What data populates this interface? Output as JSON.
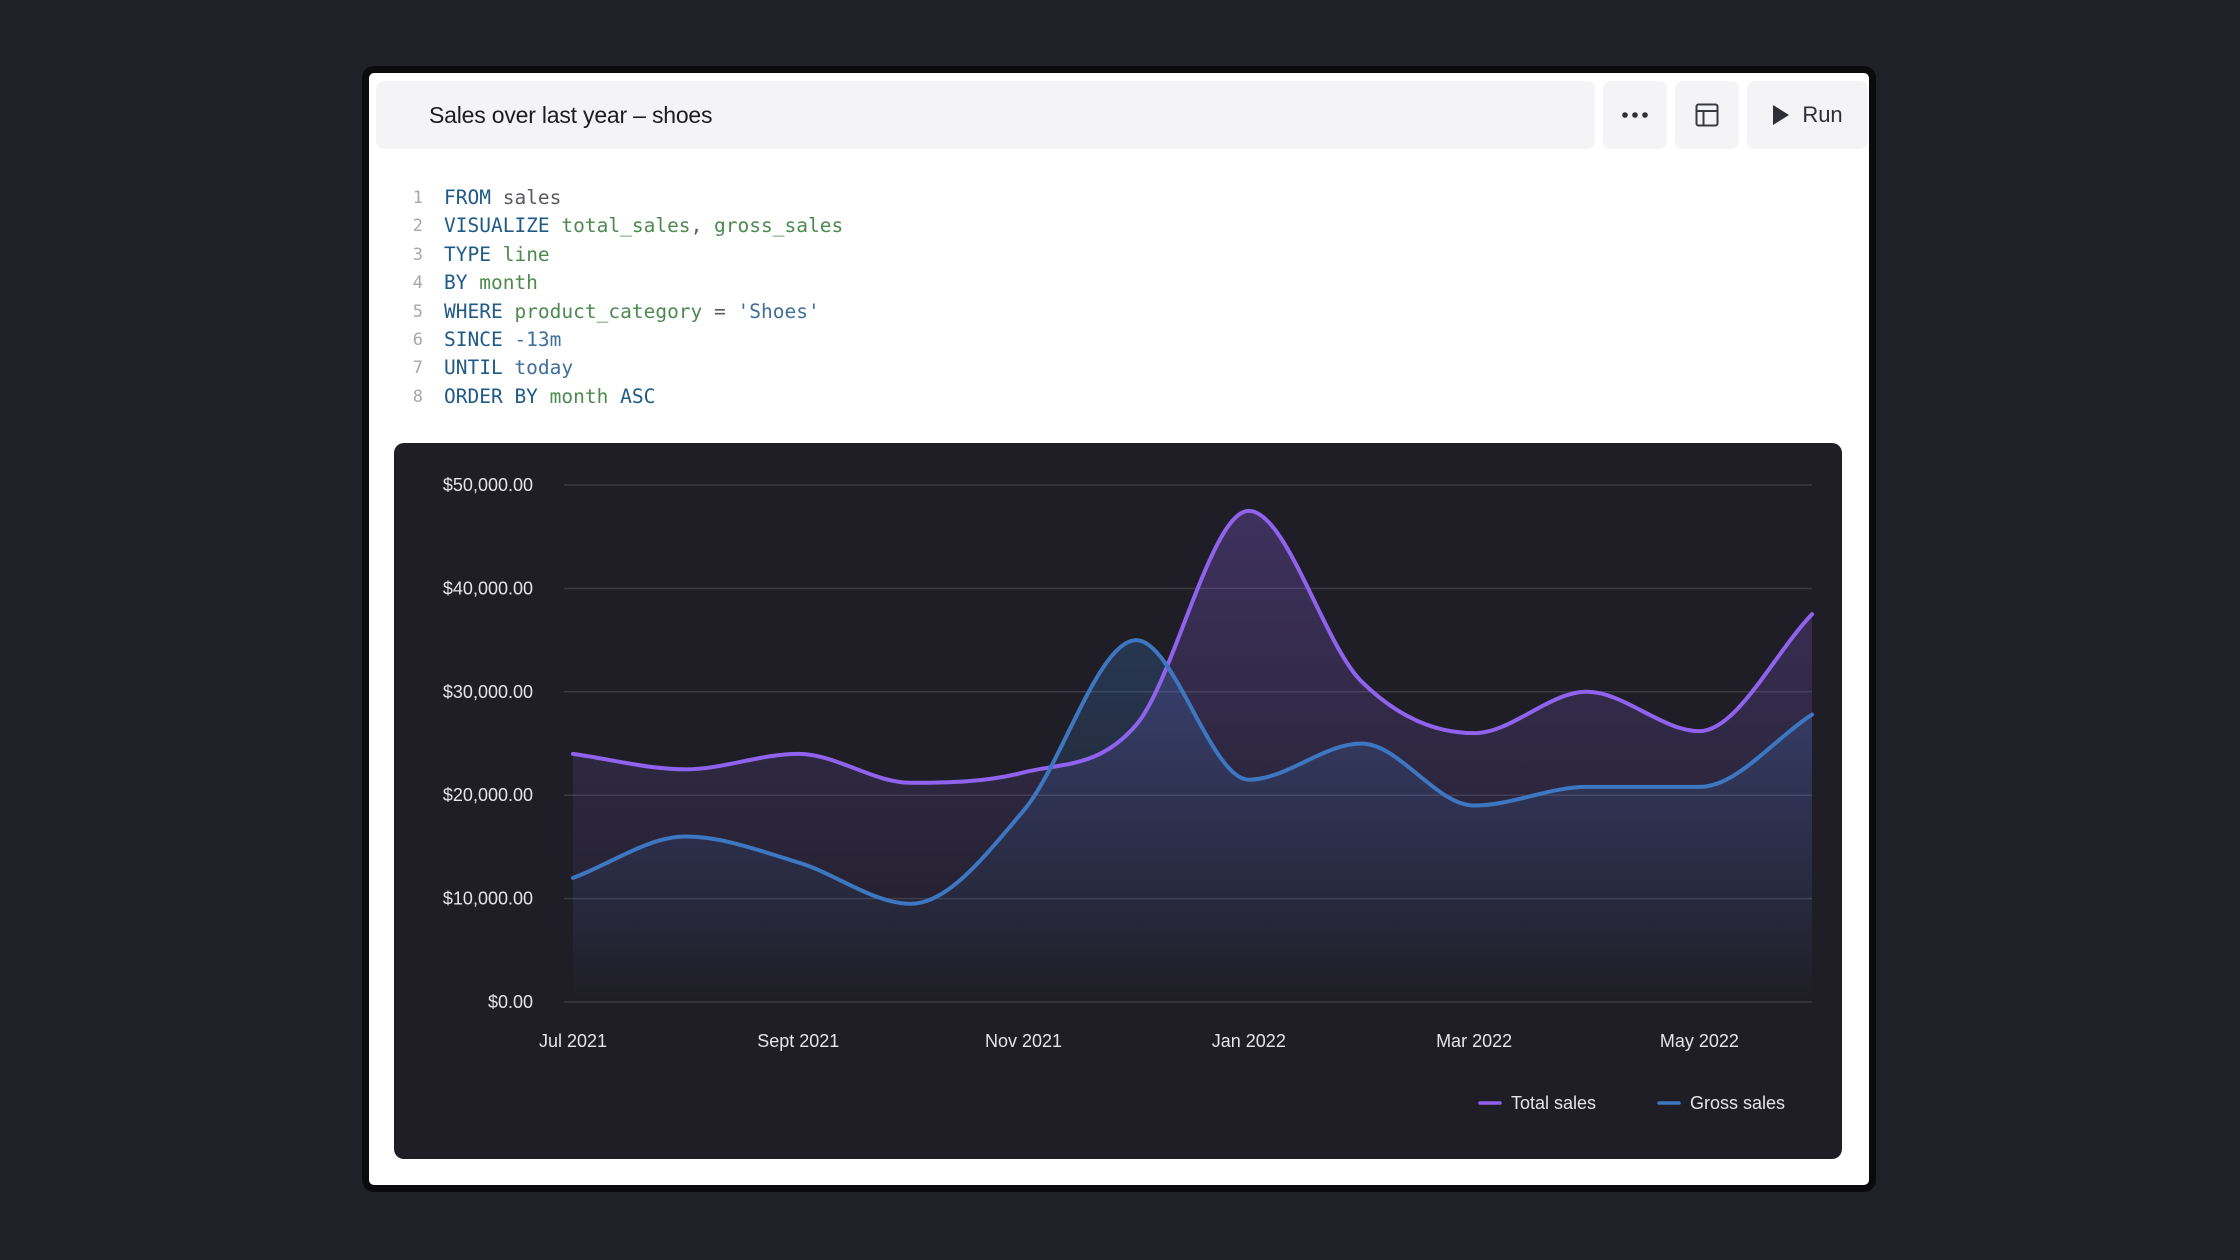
{
  "header": {
    "title": "Sales over last year – shoes",
    "more_icon": "more-horizontal-icon",
    "layout_icon": "layout-panel-icon",
    "run_icon": "play-icon",
    "run_label": "Run"
  },
  "code": {
    "lines": [
      [
        {
          "t": "FROM",
          "c": "kw"
        },
        {
          "t": " sales",
          "c": "plain"
        }
      ],
      [
        {
          "t": "VISUALIZE",
          "c": "kw"
        },
        {
          "t": " total_sales",
          "c": "id"
        },
        {
          "t": ", ",
          "c": "plain"
        },
        {
          "t": "gross_sales",
          "c": "id"
        }
      ],
      [
        {
          "t": "TYPE",
          "c": "kw"
        },
        {
          "t": " line",
          "c": "id"
        }
      ],
      [
        {
          "t": "BY",
          "c": "kw"
        },
        {
          "t": " month",
          "c": "id"
        }
      ],
      [
        {
          "t": "WHERE",
          "c": "kw"
        },
        {
          "t": " product_category",
          "c": "id"
        },
        {
          "t": " = ",
          "c": "plain"
        },
        {
          "t": "'Shoes'",
          "c": "str"
        }
      ],
      [
        {
          "t": "SINCE",
          "c": "kw"
        },
        {
          "t": " -13m",
          "c": "num"
        }
      ],
      [
        {
          "t": "UNTIL",
          "c": "kw"
        },
        {
          "t": " today",
          "c": "str"
        }
      ],
      [
        {
          "t": "ORDER BY",
          "c": "kw"
        },
        {
          "t": " month",
          "c": "id"
        },
        {
          "t": " ASC",
          "c": "kw"
        }
      ]
    ]
  },
  "colors": {
    "total": "#8f63ee",
    "gross": "#3d76c1",
    "grid": "#3a3a44",
    "tick_text": "#e4e4ea",
    "panel": "#1f1e26"
  },
  "chart_data": {
    "type": "line",
    "x": [
      "Jul 2021",
      "Aug 2021",
      "Sept 2021",
      "Oct 2021",
      "Nov 2021",
      "Dec 2021",
      "Jan 2022",
      "Feb 2022",
      "Mar 2022",
      "Apr 2022",
      "May 2022",
      "Jun 2022"
    ],
    "x_tick_labels": [
      "Jul 2021",
      "Sept 2021",
      "Nov 2021",
      "Jan 2022",
      "Mar 2022",
      "May 2022"
    ],
    "series": [
      {
        "name": "Total sales",
        "values": [
          24000,
          22500,
          24000,
          21200,
          22200,
          26800,
          47500,
          31000,
          26000,
          30000,
          26200,
          37500
        ]
      },
      {
        "name": "Gross sales",
        "values": [
          12000,
          16000,
          13500,
          9500,
          18500,
          35000,
          21500,
          25000,
          19000,
          20800,
          20800,
          27800
        ]
      }
    ],
    "y_ticks": [
      0,
      10000,
      20000,
      30000,
      40000,
      50000
    ],
    "y_tick_labels": [
      "$0.00",
      "$10,000.00",
      "$20,000.00",
      "$30,000.00",
      "$40,000.00",
      "$50,000.00"
    ],
    "ylim": [
      0,
      50000
    ],
    "grid": true,
    "legend_position": "bottom-right"
  }
}
